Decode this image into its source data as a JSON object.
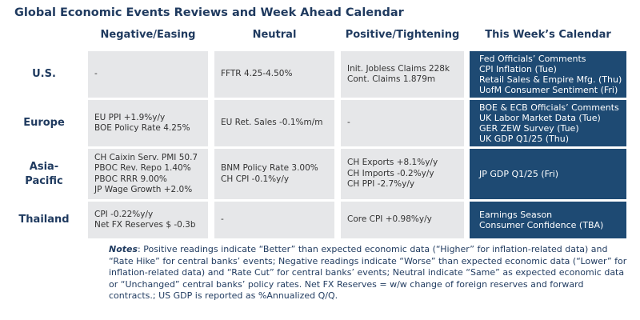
{
  "title": "Global Economic Events Reviews and Week Ahead Calendar",
  "columns": [
    "Negative/Easing",
    "Neutral",
    "Positive/Tightening",
    "This Week’s Calendar"
  ],
  "rows": [
    {
      "region": "U.S.",
      "negative": [
        "-"
      ],
      "neutral": [
        "FFTR 4.25-4.50%"
      ],
      "positive": [
        "Init. Jobless Claims 228k",
        "Cont. Claims 1.879m"
      ],
      "calendar": [
        "Fed Officials’ Comments",
        "CPI Inflation (Tue)",
        "Retail Sales & Empire Mfg. (Thu)",
        "UofM Consumer Sentiment (Fri)"
      ]
    },
    {
      "region": "Europe",
      "negative": [
        "EU PPI +1.9%y/y",
        "BOE Policy Rate 4.25%"
      ],
      "neutral": [
        "EU Ret. Sales -0.1%m/m"
      ],
      "positive": [
        "-"
      ],
      "calendar": [
        "BOE & ECB Officials’ Comments",
        "UK Labor Market Data (Tue)",
        "GER ZEW Survey (Tue)",
        "UK GDP Q1/25 (Thu)"
      ]
    },
    {
      "region": "Asia-Pacific",
      "region_lines": [
        "Asia-",
        "Pacific"
      ],
      "negative": [
        "CH Caixin Serv. PMI 50.7",
        "PBOC Rev. Repo 1.40%",
        "PBOC RRR 9.00%",
        "JP Wage Growth +2.0%"
      ],
      "neutral": [
        "BNM Policy Rate 3.00%",
        "CH CPI -0.1%y/y"
      ],
      "positive": [
        "CH Exports +8.1%y/y",
        "CH Imports -0.2%y/y",
        "CH PPI -2.7%y/y"
      ],
      "calendar": [
        "JP GDP Q1/25 (Fri)"
      ]
    },
    {
      "region": "Thailand",
      "negative": [
        "CPI -0.22%y/y",
        "Net FX Reserves $ -0.3b"
      ],
      "neutral": [
        "-"
      ],
      "positive": [
        "Core CPI +0.98%y/y"
      ],
      "calendar": [
        "Earnings Season",
        "Consumer Confidence (TBA)"
      ]
    }
  ],
  "notes": {
    "label": "Notes",
    "text": ": Positive readings indicate “Better” than expected economic data (“Higher” for inflation-related data) and “Rate Hike” for central banks’ events; Negative readings indicate “Worse” than expected economic data (“Lower” for inflation-related data) and “Rate Cut” for central banks’ events; Neutral indicate “Same” as expected economic data or “Unchanged” central banks’ policy rates. Net FX Reserves = w/w change of foreign reserves and forward contracts.; US GDP is reported as %Annualized Q/Q."
  },
  "colors": {
    "title": "#1f3a5f",
    "cell_bg": "#e6e7e9",
    "calendar_bg": "#1e4a73",
    "calendar_text": "#ffffff"
  }
}
